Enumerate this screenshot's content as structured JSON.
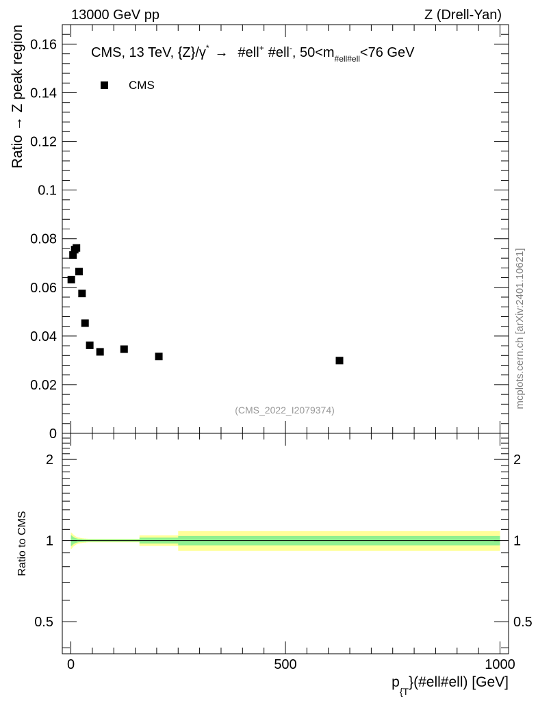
{
  "header": {
    "left": "13000 GeV pp",
    "right": "Z (Drell-Yan)"
  },
  "watermark": "mcplots.cern.ch [arXiv:2401.10621]",
  "chart_data": [
    {
      "type": "scatter",
      "panel": "main",
      "title": "CMS, 13 TeV, {Z}/γ* → #ell⁺ #ell⁻, 50<m#ell#ell<76 GeV",
      "title_parts": {
        "prefix": "CMS, 13 TeV, {Z}/",
        "gamma": "γ",
        "gamma_sup": "*",
        "arrow": "→",
        "l1": "#ell",
        "l1_sup": "+",
        "l2": "#ell",
        "l2_sup": "-",
        "mid": ", 50<m",
        "m_sub": "#ell#ell",
        "suffix": "<76 GeV"
      },
      "ylabel": "Ratio → Z peak region",
      "ylim": [
        0,
        0.168
      ],
      "y_ticks": [
        0,
        0.02,
        0.04,
        0.06,
        0.08,
        0.1,
        0.12,
        0.14,
        0.16
      ],
      "y_tick_labels": [
        "0",
        "0.02",
        "0.04",
        "0.06",
        "0.08",
        "0.1",
        "0.12",
        "0.14",
        "0.16"
      ],
      "xlim": [
        -20,
        1020
      ],
      "legend": {
        "placement": "top-left",
        "entries": [
          "CMS"
        ]
      },
      "analysis_label": "(CMS_2022_I2079374)",
      "series": [
        {
          "name": "CMS",
          "marker": "square",
          "color": "#000000",
          "x": [
            1,
            5,
            9,
            13,
            19,
            26,
            33,
            44,
            68,
            124,
            205,
            626
          ],
          "y": [
            0.0632,
            0.0733,
            0.0755,
            0.0762,
            0.0665,
            0.0575,
            0.0453,
            0.0362,
            0.0335,
            0.0346,
            0.0316,
            0.0299
          ]
        }
      ]
    },
    {
      "type": "area",
      "panel": "ratio",
      "ylabel": "Ratio to CMS",
      "xlabel": "p_{T}(#ell#ell) [GeV]",
      "xlabel_parts": {
        "main": "p",
        "sub": "{T",
        "rest": "}(#ell#ell) [GeV]"
      },
      "xlim": [
        -20,
        1020
      ],
      "x_ticks": [
        0,
        500,
        1000
      ],
      "x_tick_labels": [
        "0",
        "500",
        "1000"
      ],
      "ylim": [
        0.38,
        2.5
      ],
      "log_scale": true,
      "y_ticks": [
        0.5,
        1,
        2
      ],
      "y_tick_labels": [
        "0.5",
        "1",
        "2"
      ],
      "reference_line": 1,
      "colors": {
        "inner_band": "#90f090",
        "outer_band": "#ffff99",
        "line": "#000000"
      },
      "bands": {
        "x_edges": [
          0,
          2,
          4,
          6,
          8,
          10,
          12,
          14,
          16,
          18,
          22,
          26,
          30,
          36,
          40,
          50,
          70,
          100,
          160,
          250,
          1000
        ],
        "inner_lo": [
          0.955,
          0.96,
          0.967,
          0.972,
          0.976,
          0.979,
          0.981,
          0.983,
          0.985,
          0.986,
          0.987,
          0.988,
          0.989,
          0.99,
          0.99,
          0.99,
          0.99,
          0.99,
          0.975,
          0.96
        ],
        "inner_hi": [
          1.045,
          1.04,
          1.033,
          1.028,
          1.024,
          1.021,
          1.019,
          1.017,
          1.015,
          1.014,
          1.013,
          1.012,
          1.011,
          1.01,
          1.01,
          1.01,
          1.01,
          1.01,
          1.025,
          1.04
        ],
        "outer_lo": [
          0.93,
          0.937,
          0.945,
          0.952,
          0.958,
          0.963,
          0.967,
          0.97,
          0.973,
          0.975,
          0.978,
          0.98,
          0.982,
          0.984,
          0.985,
          0.985,
          0.985,
          0.985,
          0.955,
          0.915
        ],
        "outer_hi": [
          1.07,
          1.063,
          1.055,
          1.048,
          1.042,
          1.037,
          1.033,
          1.03,
          1.027,
          1.025,
          1.022,
          1.02,
          1.018,
          1.016,
          1.015,
          1.015,
          1.015,
          1.015,
          1.045,
          1.085
        ]
      }
    }
  ]
}
